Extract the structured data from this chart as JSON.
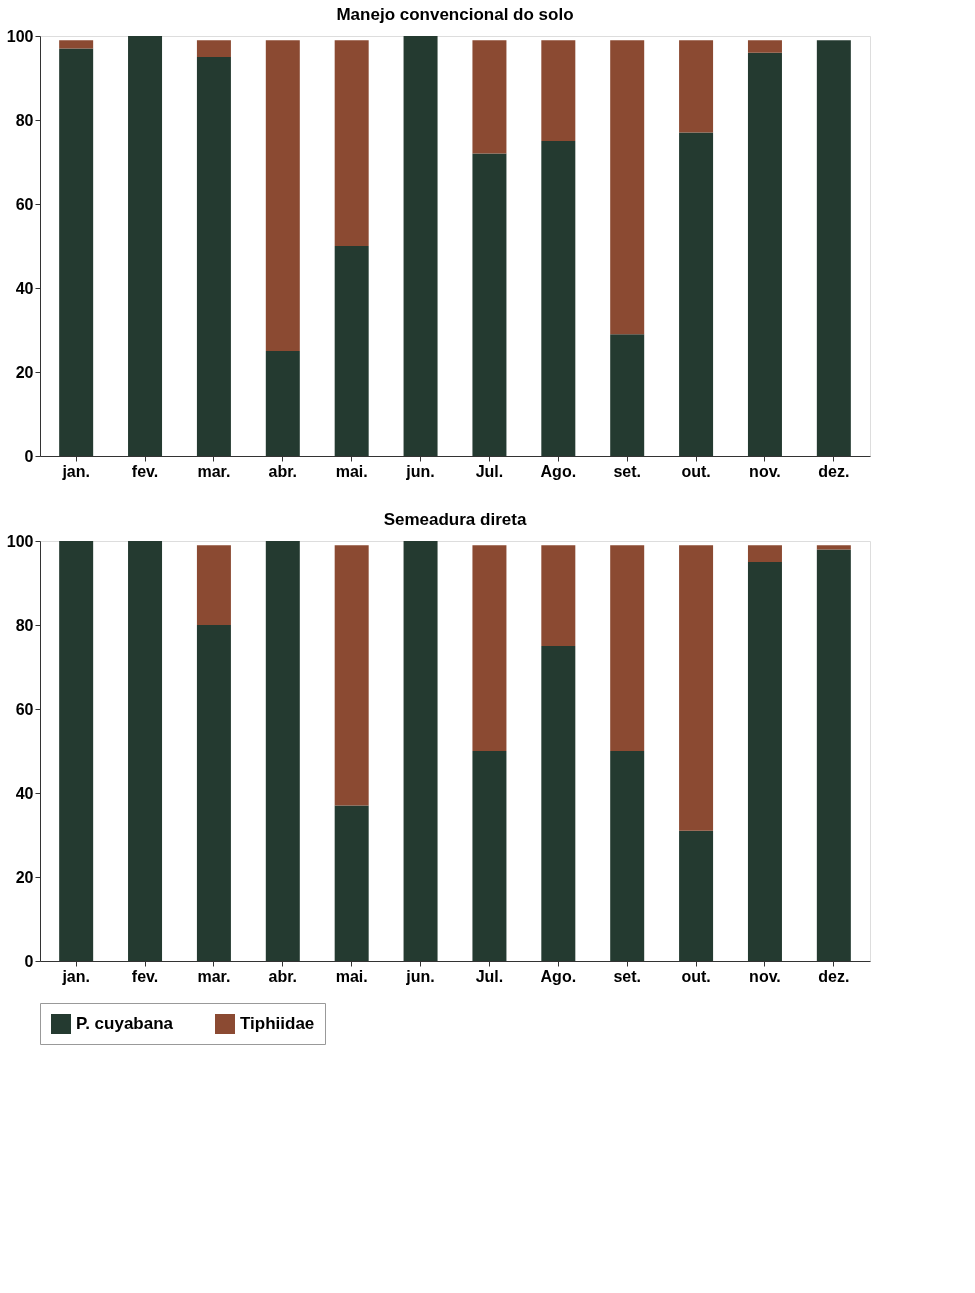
{
  "chart_data": [
    {
      "type": "bar",
      "title": "Manejo convencional do solo",
      "stacked": true,
      "categories": [
        "jan.",
        "fev.",
        "mar.",
        "abr.",
        "mai.",
        "jun.",
        "Jul.",
        "Ago.",
        "set.",
        "out.",
        "nov.",
        "dez."
      ],
      "ylim": [
        0,
        100
      ],
      "yticks": [
        0,
        20,
        40,
        60,
        80,
        100
      ],
      "grid": false,
      "legend": "bottom",
      "series": [
        {
          "name": "P. cuyabana",
          "color": "#243a30",
          "values": [
            97,
            100,
            95,
            25,
            50,
            100,
            72,
            75,
            29,
            77,
            96,
            99
          ]
        },
        {
          "name": "Tiphiidae",
          "color": "#8b4a32",
          "values": [
            2,
            0,
            4,
            74,
            49,
            0,
            27,
            24,
            70,
            22,
            3,
            0
          ]
        }
      ]
    },
    {
      "type": "bar",
      "title": "Semeadura direta",
      "stacked": true,
      "categories": [
        "jan.",
        "fev.",
        "mar.",
        "abr.",
        "mai.",
        "jun.",
        "Jul.",
        "Ago.",
        "set.",
        "out.",
        "nov.",
        "dez."
      ],
      "ylim": [
        0,
        100
      ],
      "yticks": [
        0,
        20,
        40,
        60,
        80,
        100
      ],
      "grid": false,
      "legend": "bottom",
      "series": [
        {
          "name": "P. cuyabana",
          "color": "#243a30",
          "values": [
            100,
            100,
            80,
            100,
            37,
            100,
            50,
            75,
            50,
            31,
            95,
            98
          ]
        },
        {
          "name": "Tiphiidae",
          "color": "#8b4a32",
          "values": [
            0,
            0,
            19,
            0,
            62,
            0,
            49,
            24,
            49,
            68,
            4,
            1
          ]
        }
      ]
    }
  ]
}
